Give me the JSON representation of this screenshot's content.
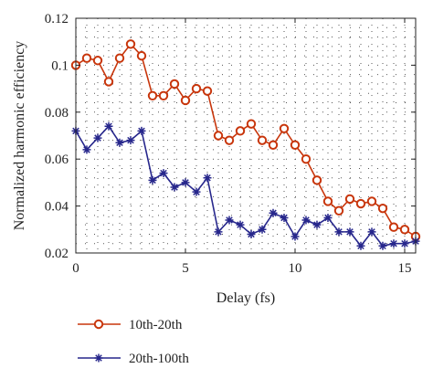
{
  "chart_data": {
    "type": "line",
    "title": "",
    "xlabel": "Delay (fs)",
    "ylabel": "Normalized harmonic efficiency",
    "xlim": [
      0,
      15.5
    ],
    "ylim": [
      0.02,
      0.12
    ],
    "xticks": [
      0,
      5,
      10,
      15
    ],
    "yticks": [
      0.02,
      0.04,
      0.06,
      0.08,
      0.1,
      0.12
    ],
    "xtick_labels": [
      "0",
      "5",
      "10",
      "15"
    ],
    "ytick_labels": [
      "0.02",
      "0.04",
      "0.06",
      "0.08",
      "0.1",
      "0.12"
    ],
    "grid": "dotted",
    "legend_position": "bottom",
    "x": [
      0,
      0.5,
      1,
      1.5,
      2,
      2.5,
      3,
      3.5,
      4,
      4.5,
      5,
      5.5,
      6,
      6.5,
      7,
      7.5,
      8,
      8.5,
      9,
      9.5,
      10,
      10.5,
      11,
      11.5,
      12,
      12.5,
      13,
      13.5,
      14,
      14.5,
      15,
      15.5
    ],
    "series": [
      {
        "name": "10th-20th",
        "color": "#c8360c",
        "marker": "circle",
        "values": [
          0.1,
          0.103,
          0.102,
          0.093,
          0.103,
          0.109,
          0.104,
          0.087,
          0.087,
          0.092,
          0.085,
          0.09,
          0.089,
          0.07,
          0.068,
          0.072,
          0.075,
          0.068,
          0.066,
          0.073,
          0.066,
          0.06,
          0.051,
          0.042,
          0.038,
          0.043,
          0.041,
          0.042,
          0.039,
          0.031,
          0.03,
          0.027
        ]
      },
      {
        "name": "20th-100th",
        "color": "#27278c",
        "marker": "star",
        "values": [
          0.072,
          0.064,
          0.069,
          0.074,
          0.067,
          0.068,
          0.072,
          0.051,
          0.054,
          0.048,
          0.05,
          0.046,
          0.052,
          0.029,
          0.034,
          0.032,
          0.028,
          0.03,
          0.037,
          0.035,
          0.027,
          0.034,
          0.032,
          0.035,
          0.029,
          0.029,
          0.023,
          0.029,
          0.023,
          0.024,
          0.024,
          0.025
        ]
      }
    ]
  }
}
